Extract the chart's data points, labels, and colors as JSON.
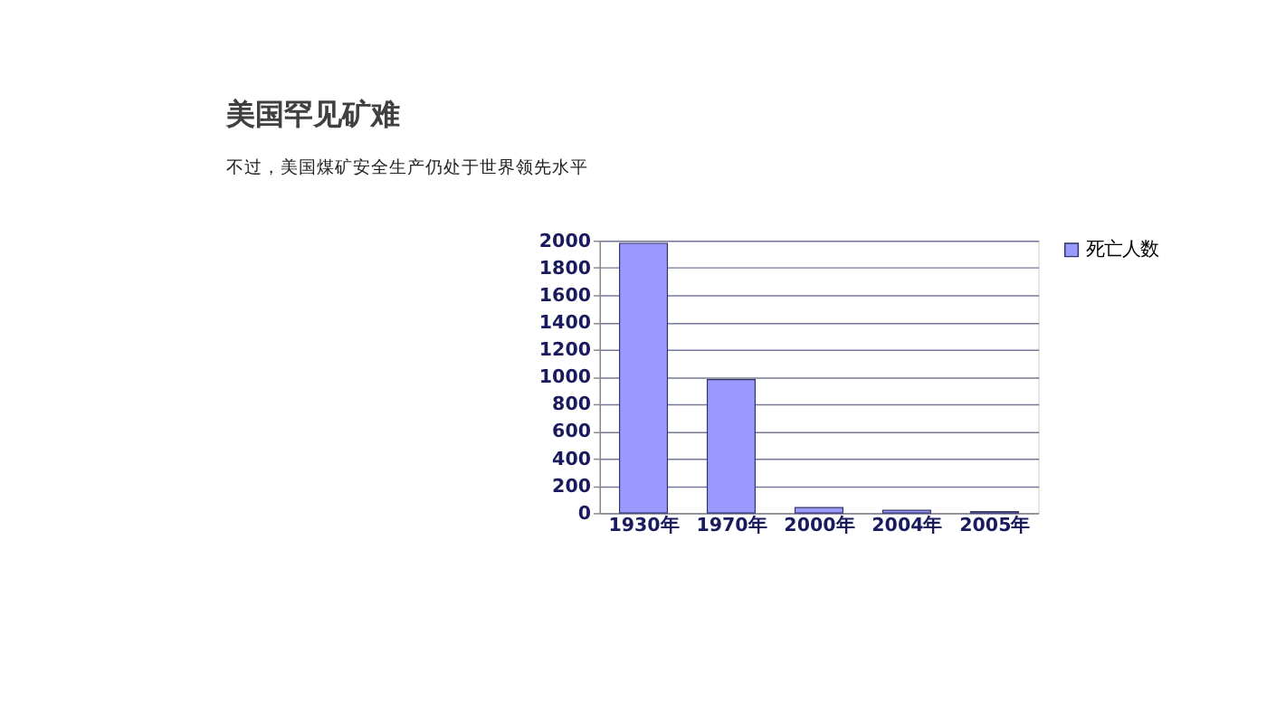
{
  "chart_data": {
    "type": "bar",
    "title": "美国罕见矿难",
    "subtitle": "不过，美国煤矿安全生产仍处于世界领先水平",
    "categories": [
      "1930年",
      "1970年",
      "2000年",
      "2004年",
      "2005年"
    ],
    "series": [
      {
        "name": "死亡人数",
        "color": "#9999ff",
        "values": [
          1980,
          980,
          40,
          20,
          10
        ]
      }
    ],
    "ylim": [
      0,
      2000
    ],
    "yticks": [
      0,
      200,
      400,
      600,
      800,
      1000,
      1200,
      1400,
      1600,
      1800,
      2000
    ],
    "grid": "y",
    "legend": "right"
  }
}
